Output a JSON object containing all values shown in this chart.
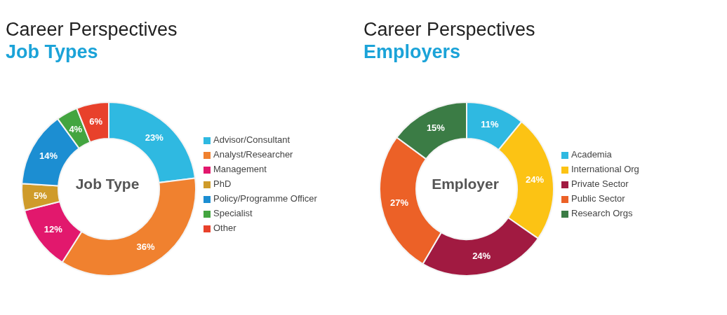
{
  "chart_data": [
    {
      "type": "donut",
      "title": "Career Perspectives",
      "subtitle": "Job Types",
      "annotations": [
        "Job Type"
      ],
      "categories": [
        "Advisor/Consultant",
        "Analyst/Researcher",
        "Management",
        "PhD",
        "Policy/Programme Officer",
        "Specialist",
        "Other"
      ],
      "values": [
        23,
        36,
        12,
        5,
        14,
        4,
        6
      ],
      "value_labels": [
        "23%",
        "36%",
        "12%",
        "5%",
        "14%",
        "4%",
        "6%"
      ],
      "colors": [
        "#2fb9e1",
        "#f0812f",
        "#e2186d",
        "#cf9b2a",
        "#1c8ed2",
        "#43a540",
        "#e8412b"
      ],
      "legend": "right"
    },
    {
      "type": "donut",
      "title": "Career Perspectives",
      "subtitle": "Employers",
      "annotations": [
        "Employer"
      ],
      "categories": [
        "Academia",
        "International Org",
        "Private Sector",
        "Public Sector",
        "Research Orgs"
      ],
      "values": [
        11,
        24,
        24,
        27,
        15
      ],
      "value_labels": [
        "11%",
        "24%",
        "24%",
        "27%",
        "15%"
      ],
      "colors": [
        "#2fb9e1",
        "#fcc314",
        "#a11a41",
        "#ec6127",
        "#3b7c45"
      ],
      "legend": "right"
    }
  ]
}
